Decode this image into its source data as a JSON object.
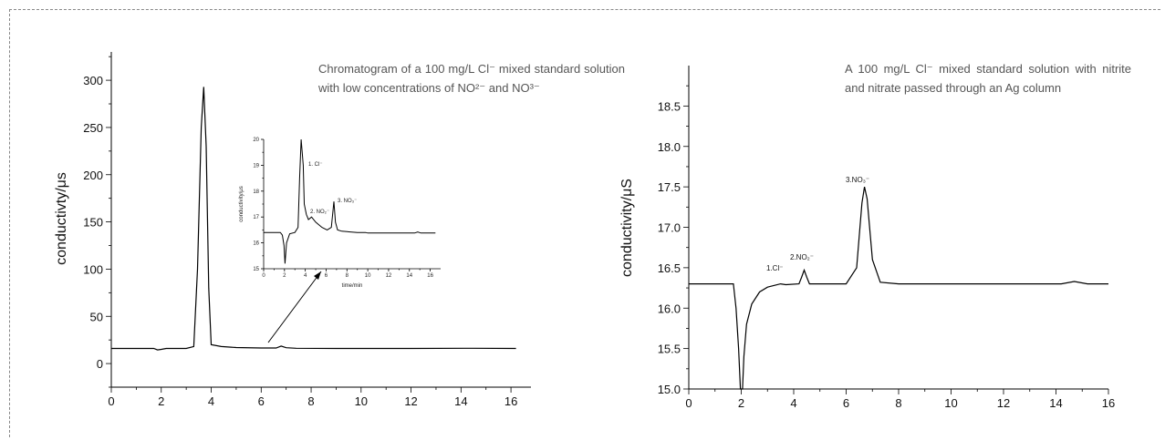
{
  "chart_data": [
    {
      "type": "line",
      "title": "Chromatogram of a 100 mg/L Cl⁻ mixed standard solution with low concentrations of NO²⁻ and NO³⁻",
      "xlabel": "",
      "ylabel": "conductivty/μs",
      "xlim": [
        0,
        16.8
      ],
      "ylim": [
        -25,
        330
      ],
      "xticks": [
        "0",
        "2",
        "4",
        "6",
        "8",
        "10",
        "12",
        "14",
        "16"
      ],
      "yticks": [
        "0",
        "50",
        "100",
        "150",
        "200",
        "250",
        "300"
      ],
      "series": [
        {
          "x": [
            0.0,
            1.7,
            1.85,
            2.0,
            2.2,
            3.0,
            3.3,
            3.45,
            3.6,
            3.7,
            3.8,
            3.9,
            4.0,
            4.4,
            5.0,
            6.0,
            6.6,
            6.8,
            7.0,
            7.4,
            9.0,
            12.0,
            14.5,
            16.2
          ],
          "y": [
            16,
            16,
            14.5,
            15,
            16,
            16,
            18,
            100,
            250,
            293,
            230,
            80,
            20,
            18,
            17,
            16.5,
            16.5,
            18.5,
            16.8,
            16.2,
            16,
            16,
            16.2,
            16
          ]
        }
      ],
      "inset": {
        "xlabel": "time/min",
        "ylabel": "conductivity/μs",
        "xlim": [
          0,
          17
        ],
        "ylim": [
          15,
          20
        ],
        "xticks": [
          "0",
          "2",
          "4",
          "6",
          "8",
          "10",
          "12",
          "14",
          "16"
        ],
        "yticks": [
          "15",
          "16",
          "17",
          "18",
          "19",
          "20"
        ],
        "annotations": [
          "1. Cl⁻",
          "2. NO₂⁻",
          "3. NO₃⁻"
        ],
        "series": [
          {
            "x": [
              0.0,
              1.6,
              1.8,
              1.95,
              2.05,
              2.2,
              2.5,
              3.0,
              3.3,
              3.45,
              3.6,
              3.8,
              3.9,
              4.1,
              4.3,
              4.6,
              5.0,
              5.6,
              6.1,
              6.5,
              6.75,
              6.9,
              7.1,
              7.5,
              9.0,
              9.8,
              10.0,
              12.0,
              14.5,
              14.8,
              15.1,
              16.5
            ],
            "y": [
              16.4,
              16.4,
              16.3,
              15.9,
              15.2,
              16.0,
              16.35,
              16.4,
              16.6,
              18.5,
              20.0,
              19.0,
              17.5,
              17.1,
              16.9,
              17.0,
              16.8,
              16.6,
              16.5,
              16.6,
              17.6,
              16.8,
              16.5,
              16.45,
              16.4,
              16.4,
              16.38,
              16.38,
              16.38,
              16.42,
              16.38,
              16.38
            ]
          }
        ]
      }
    },
    {
      "type": "line",
      "title": "A 100 mg/L Cl⁻ mixed standard solution with nitrite and nitrate passed through an Ag column",
      "xlabel": "",
      "ylabel": "conductivity/μS",
      "xlim": [
        0,
        16
      ],
      "ylim": [
        15.0,
        19.0
      ],
      "xticks": [
        "0",
        "2",
        "4",
        "6",
        "8",
        "10",
        "12",
        "14",
        "16"
      ],
      "yticks": [
        "15.0",
        "15.5",
        "16.0",
        "16.5",
        "17.0",
        "17.5",
        "18.0",
        "18.5"
      ],
      "annotations": [
        "1.Cl⁻",
        "2.NO₂⁻",
        "3.NO₃⁻"
      ],
      "series": [
        {
          "x": [
            0.0,
            1.7,
            1.8,
            1.9,
            1.97,
            2.0,
            2.05,
            2.1,
            2.2,
            2.4,
            2.7,
            3.0,
            3.5,
            3.7,
            4.2,
            4.3,
            4.4,
            4.5,
            4.6,
            5.0,
            6.0,
            6.4,
            6.6,
            6.7,
            6.8,
            7.0,
            7.3,
            8.0,
            10.0,
            13.0,
            14.2,
            14.7,
            15.2,
            16.0
          ],
          "y": [
            16.3,
            16.3,
            16.0,
            15.5,
            15.0,
            15.0,
            15.0,
            15.4,
            15.8,
            16.05,
            16.2,
            16.26,
            16.3,
            16.29,
            16.3,
            16.38,
            16.47,
            16.38,
            16.3,
            16.3,
            16.3,
            16.5,
            17.3,
            17.5,
            17.35,
            16.6,
            16.32,
            16.3,
            16.3,
            16.3,
            16.3,
            16.33,
            16.3,
            16.3
          ]
        }
      ]
    }
  ]
}
